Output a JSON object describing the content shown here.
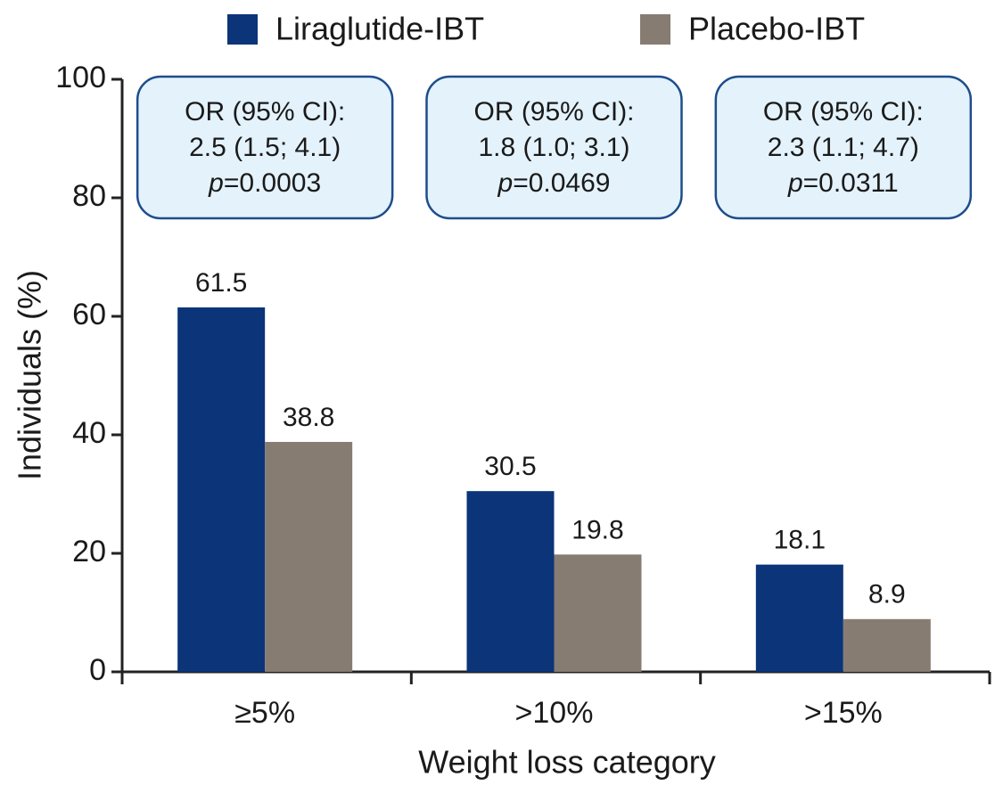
{
  "chart_data": {
    "type": "bar",
    "x_label": "Weight loss category",
    "y_label": "Individuals (%)",
    "categories": [
      "≥5%",
      ">10%",
      ">15%"
    ],
    "series": [
      {
        "name": "Liraglutide-IBT",
        "color": "#0b3479",
        "values": [
          61.5,
          30.5,
          18.1
        ]
      },
      {
        "name": "Placebo-IBT",
        "color": "#877c72",
        "values": [
          38.8,
          19.8,
          8.9
        ]
      }
    ],
    "ylim": [
      0,
      100
    ],
    "yticks": [
      0,
      20,
      40,
      60,
      80,
      100
    ],
    "annotations": [
      [
        "OR (95% CI):",
        "2.5 (1.5; 4.1)",
        "p=0.0003"
      ],
      [
        "OR (95% CI):",
        "1.8 (1.0; 3.1)",
        "p=0.0469"
      ],
      [
        "OR (95% CI):",
        "2.3 (1.1; 4.7)",
        "p=0.0311"
      ]
    ],
    "legend": "top"
  }
}
